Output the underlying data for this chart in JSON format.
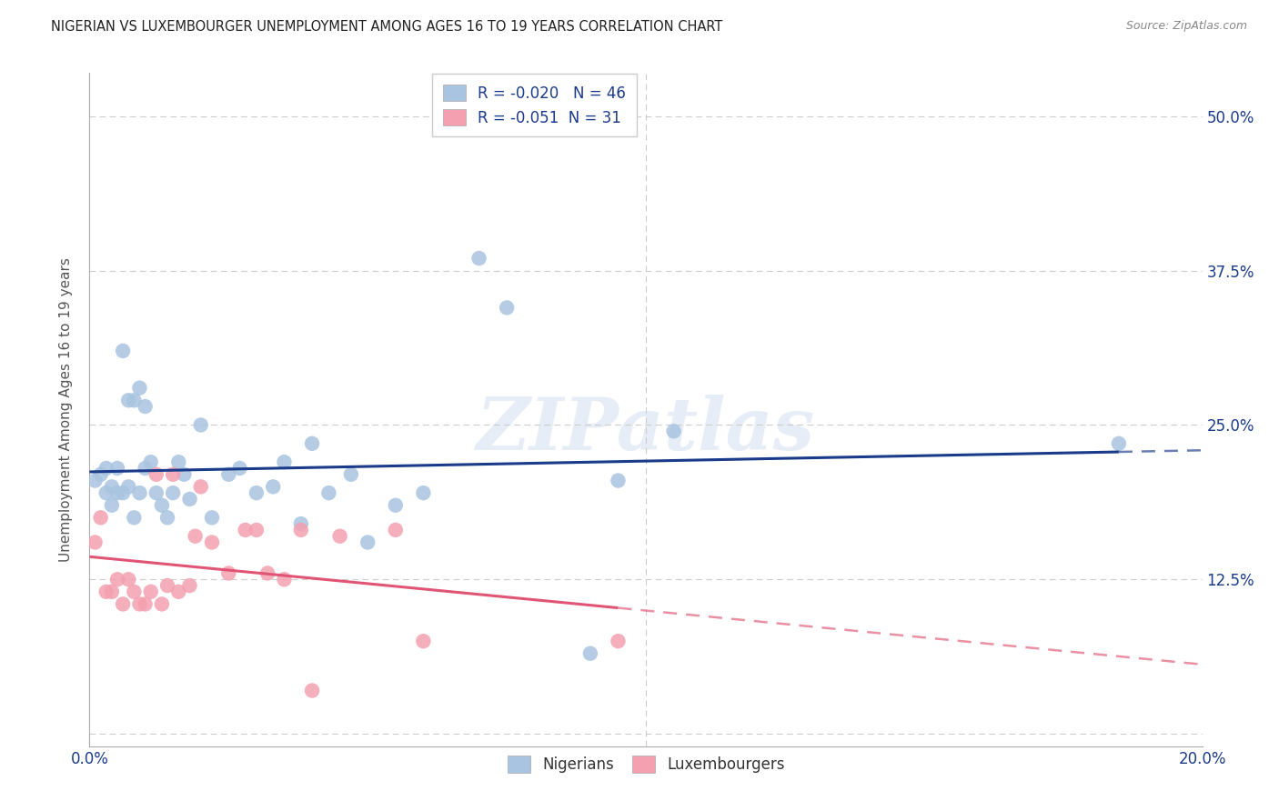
{
  "title": "NIGERIAN VS LUXEMBOURGER UNEMPLOYMENT AMONG AGES 16 TO 19 YEARS CORRELATION CHART",
  "source": "Source: ZipAtlas.com",
  "ylabel": "Unemployment Among Ages 16 to 19 years",
  "xlim": [
    0.0,
    0.2
  ],
  "ylim": [
    -0.01,
    0.535
  ],
  "yticks": [
    0.0,
    0.125,
    0.25,
    0.375,
    0.5
  ],
  "ytick_labels": [
    "",
    "12.5%",
    "25.0%",
    "37.5%",
    "50.0%"
  ],
  "xticks": [
    0.0,
    0.04,
    0.08,
    0.12,
    0.16,
    0.2
  ],
  "xtick_labels": [
    "0.0%",
    "",
    "",
    "",
    "",
    "20.0%"
  ],
  "nigerian_R": -0.02,
  "nigerian_N": 46,
  "luxembourger_R": -0.051,
  "luxembourger_N": 31,
  "nigerian_color": "#a8c4e0",
  "luxembourger_color": "#f4a0b0",
  "nigerian_line_color": "#1a3a8a",
  "luxembourger_line_color": "#e05575",
  "background_color": "#ffffff",
  "grid_color": "#cccccc",
  "title_color": "#222222",
  "axis_label_color": "#1a3a8a",
  "watermark": "ZIPatlas",
  "nigerian_x": [
    0.001,
    0.002,
    0.003,
    0.003,
    0.004,
    0.004,
    0.005,
    0.005,
    0.006,
    0.006,
    0.007,
    0.007,
    0.008,
    0.008,
    0.009,
    0.009,
    0.01,
    0.01,
    0.011,
    0.012,
    0.013,
    0.014,
    0.015,
    0.016,
    0.017,
    0.018,
    0.02,
    0.022,
    0.025,
    0.027,
    0.03,
    0.033,
    0.035,
    0.038,
    0.04,
    0.043,
    0.047,
    0.05,
    0.055,
    0.06,
    0.07,
    0.075,
    0.09,
    0.095,
    0.105,
    0.185
  ],
  "nigerian_y": [
    0.205,
    0.21,
    0.215,
    0.195,
    0.2,
    0.185,
    0.215,
    0.195,
    0.31,
    0.195,
    0.27,
    0.2,
    0.27,
    0.175,
    0.28,
    0.195,
    0.265,
    0.215,
    0.22,
    0.195,
    0.185,
    0.175,
    0.195,
    0.22,
    0.21,
    0.19,
    0.25,
    0.175,
    0.21,
    0.215,
    0.195,
    0.2,
    0.22,
    0.17,
    0.235,
    0.195,
    0.21,
    0.155,
    0.185,
    0.195,
    0.385,
    0.345,
    0.065,
    0.205,
    0.245,
    0.235
  ],
  "luxembourger_x": [
    0.001,
    0.002,
    0.003,
    0.004,
    0.005,
    0.006,
    0.007,
    0.008,
    0.009,
    0.01,
    0.011,
    0.012,
    0.013,
    0.014,
    0.015,
    0.016,
    0.018,
    0.019,
    0.02,
    0.022,
    0.025,
    0.028,
    0.03,
    0.032,
    0.035,
    0.038,
    0.04,
    0.045,
    0.055,
    0.06,
    0.095
  ],
  "luxembourger_y": [
    0.155,
    0.175,
    0.115,
    0.115,
    0.125,
    0.105,
    0.125,
    0.115,
    0.105,
    0.105,
    0.115,
    0.21,
    0.105,
    0.12,
    0.21,
    0.115,
    0.12,
    0.16,
    0.2,
    0.155,
    0.13,
    0.165,
    0.165,
    0.13,
    0.125,
    0.165,
    0.035,
    0.16,
    0.165,
    0.075,
    0.075
  ]
}
